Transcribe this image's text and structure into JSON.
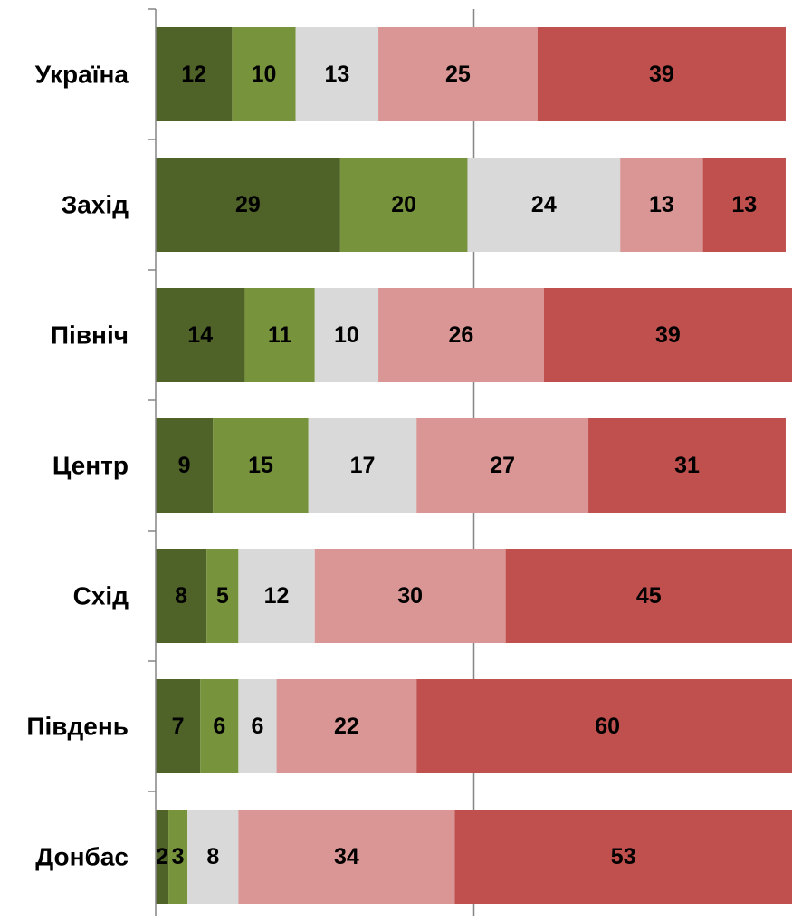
{
  "chart_data": {
    "type": "bar",
    "orientation": "horizontal",
    "stacked": true,
    "categories": [
      "Україна",
      "Захід",
      "Північ",
      "Центр",
      "Схід",
      "Південь",
      "Донбас"
    ],
    "series": [
      {
        "values": [
          12,
          29,
          14,
          9,
          8,
          7,
          2
        ],
        "color": "#4f6228",
        "label_color": "#000000"
      },
      {
        "values": [
          10,
          20,
          11,
          15,
          5,
          6,
          3
        ],
        "color": "#77933c",
        "label_color": "#000000"
      },
      {
        "values": [
          13,
          24,
          10,
          17,
          12,
          6,
          8
        ],
        "color": "#d9d9d9",
        "label_color": "#000000"
      },
      {
        "values": [
          25,
          13,
          26,
          27,
          30,
          22,
          34
        ],
        "color": "#d99694",
        "label_color": "#000000"
      },
      {
        "values": [
          39,
          13,
          39,
          31,
          45,
          60,
          53
        ],
        "color": "#c0504d",
        "label_color": "#000000"
      }
    ],
    "xlim": [
      0,
      100
    ],
    "axis_line_color": "#868686",
    "grid": true,
    "legend": "none"
  }
}
